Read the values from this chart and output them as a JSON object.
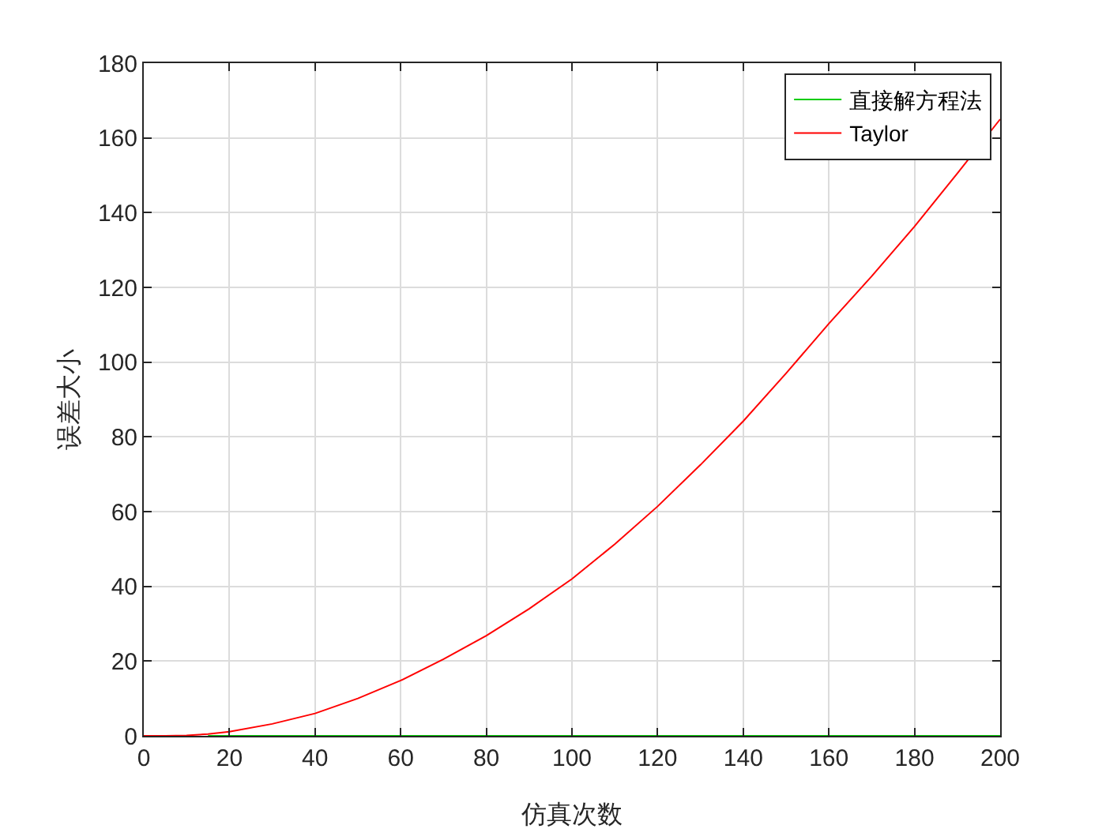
{
  "chart_data": {
    "type": "line",
    "xlabel": "仿真次数",
    "ylabel": "误差大小",
    "xlim": [
      0,
      200
    ],
    "ylim": [
      0,
      180
    ],
    "xticks": [
      0,
      20,
      40,
      60,
      80,
      100,
      120,
      140,
      160,
      180,
      200
    ],
    "yticks": [
      0,
      20,
      40,
      60,
      80,
      100,
      120,
      140,
      160,
      180
    ],
    "grid": true,
    "legend": "top right",
    "x": [
      0,
      5,
      10,
      15,
      20,
      30,
      40,
      50,
      60,
      70,
      80,
      90,
      100,
      110,
      120,
      130,
      140,
      150,
      160,
      170,
      180,
      190,
      200
    ],
    "series": [
      {
        "name": "直接解方程法",
        "color": "#00cc00",
        "values": [
          null,
          null,
          null,
          0,
          0,
          0,
          0,
          0,
          0,
          0,
          0,
          0,
          0,
          0,
          0,
          0,
          0,
          0,
          0,
          0,
          0,
          0,
          0
        ]
      },
      {
        "name": "Taylor",
        "color": "#ff0000",
        "values": [
          0,
          0,
          0.1,
          0.5,
          1.1,
          3.2,
          6,
          10,
          14.8,
          20.5,
          26.8,
          34,
          42,
          51.3,
          61.4,
          72.5,
          84.2,
          97,
          110.3,
          123,
          136.3,
          150.5,
          165
        ]
      }
    ]
  }
}
